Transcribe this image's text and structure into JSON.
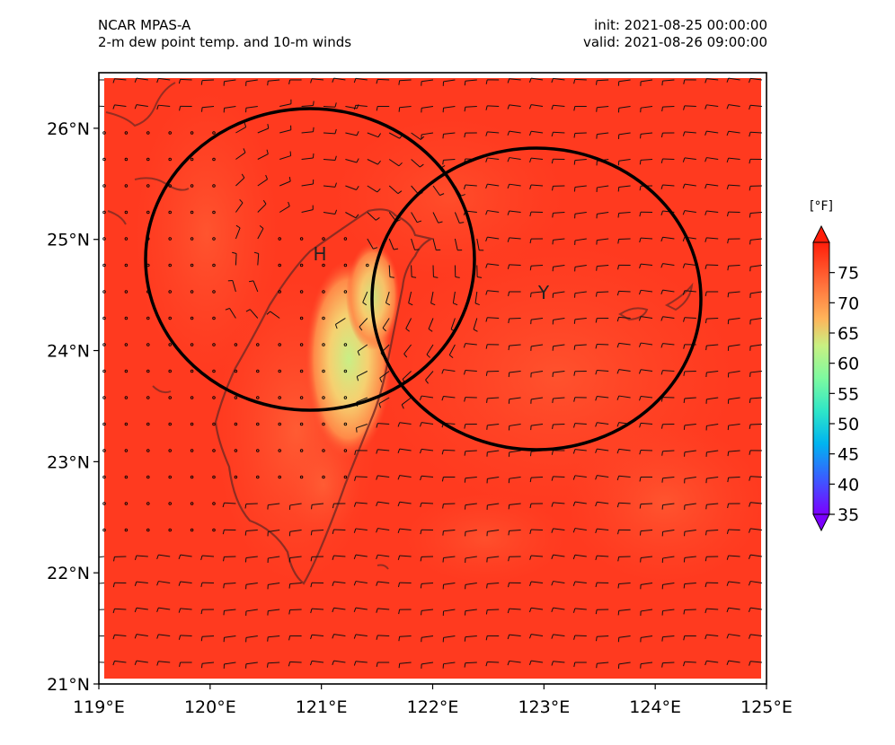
{
  "header": {
    "model": "NCAR MPAS-A",
    "field": "2-m dew point temp. and 10-m winds",
    "init": "init: 2021-08-25 00:00:00",
    "valid": "valid: 2021-08-26 09:00:00"
  },
  "map": {
    "lon_range": [
      119,
      125
    ],
    "lat_range": [
      21,
      26.5
    ],
    "x_ticks": [
      "119°E",
      "120°E",
      "121°E",
      "122°E",
      "123°E",
      "124°E",
      "125°E"
    ],
    "y_ticks": [
      "21°N",
      "22°N",
      "23°N",
      "24°N",
      "25°N",
      "26°N"
    ],
    "markers": [
      {
        "label": "H",
        "lon": 121.0,
        "lat": 24.85,
        "radius_deg": 1.45
      },
      {
        "label": "Y",
        "lon": 122.95,
        "lat": 24.45,
        "radius_deg": 1.45
      }
    ]
  },
  "colorbar": {
    "unit": "[°F]",
    "ticks": [
      "35",
      "40",
      "45",
      "50",
      "55",
      "60",
      "65",
      "70",
      "75"
    ],
    "min": 35,
    "max": 80,
    "colors": [
      "#7b00ff",
      "#3b5bff",
      "#00b4f0",
      "#2ee6c8",
      "#7dfaa0",
      "#c8f082",
      "#ffb45a",
      "#ff6e3a",
      "#ff1e0a"
    ]
  }
}
